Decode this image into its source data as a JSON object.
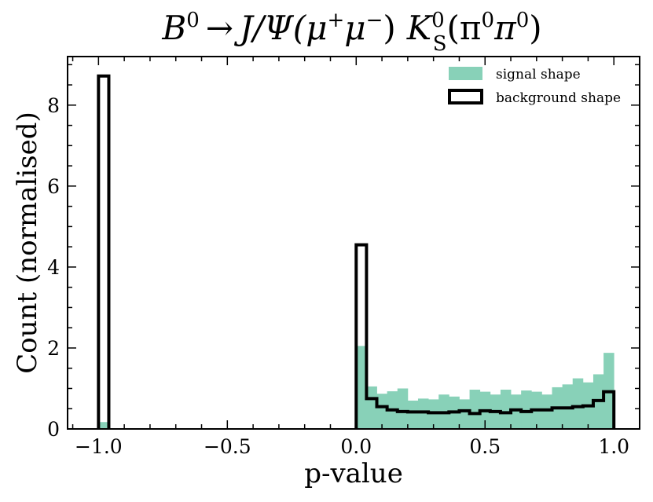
{
  "chart_data": {
    "type": "histogram",
    "title": {
      "text": "B0 → J/Ψ(μ+μ−) K0S(π0π0)",
      "parts": {
        "b": "B",
        "b_sup": "0",
        "arrow": "→",
        "jpsi": "J/Ψ(μ",
        "mu_plus_sup": "+",
        "mu": "μ",
        "mu_minus_sup": "−",
        "close": ")",
        "k": "K",
        "k_sup": "0",
        "k_sub": "S",
        "pi_open": "(π",
        "pi_sup1": "0",
        "pi": "π",
        "pi_sup2": "0",
        "pi_close": ")"
      }
    },
    "xlabel": "p-value",
    "ylabel": "Count (normalised)",
    "xlim": [
      -1.12,
      1.1
    ],
    "ylim": [
      0,
      9.2
    ],
    "xticks": [
      -1.0,
      -0.5,
      0.0,
      0.5,
      1.0
    ],
    "xtick_labels": [
      "−1.0",
      "−0.5",
      "0.0",
      "0.5",
      "1.0"
    ],
    "yticks": [
      0,
      2,
      4,
      6,
      8
    ],
    "ytick_labels": [
      "0",
      "2",
      "4",
      "6",
      "8"
    ],
    "legend": {
      "position": "top-right",
      "entries": [
        {
          "label": "signal shape",
          "style": "filled",
          "color": "#88d1b8"
        },
        {
          "label": "background shape",
          "style": "step",
          "color": "#000000"
        }
      ]
    },
    "bin_width": 0.04,
    "series": [
      {
        "name": "signal shape",
        "color": "#88d1b8",
        "bins": [
          {
            "x0": -1.0,
            "x1": -0.96,
            "y": 0.17
          },
          {
            "x0": 0.0,
            "x1": 0.04,
            "y": 2.05
          },
          {
            "x0": 0.04,
            "x1": 0.08,
            "y": 1.05
          },
          {
            "x0": 0.08,
            "x1": 0.12,
            "y": 0.87
          },
          {
            "x0": 0.12,
            "x1": 0.16,
            "y": 0.93
          },
          {
            "x0": 0.16,
            "x1": 0.2,
            "y": 1.0
          },
          {
            "x0": 0.2,
            "x1": 0.24,
            "y": 0.7
          },
          {
            "x0": 0.24,
            "x1": 0.28,
            "y": 0.75
          },
          {
            "x0": 0.28,
            "x1": 0.32,
            "y": 0.73
          },
          {
            "x0": 0.32,
            "x1": 0.36,
            "y": 0.85
          },
          {
            "x0": 0.36,
            "x1": 0.4,
            "y": 0.8
          },
          {
            "x0": 0.4,
            "x1": 0.44,
            "y": 0.73
          },
          {
            "x0": 0.44,
            "x1": 0.48,
            "y": 0.97
          },
          {
            "x0": 0.48,
            "x1": 0.52,
            "y": 0.92
          },
          {
            "x0": 0.52,
            "x1": 0.56,
            "y": 0.85
          },
          {
            "x0": 0.56,
            "x1": 0.6,
            "y": 0.97
          },
          {
            "x0": 0.6,
            "x1": 0.64,
            "y": 0.85
          },
          {
            "x0": 0.64,
            "x1": 0.68,
            "y": 0.95
          },
          {
            "x0": 0.68,
            "x1": 0.72,
            "y": 0.92
          },
          {
            "x0": 0.72,
            "x1": 0.76,
            "y": 0.85
          },
          {
            "x0": 0.76,
            "x1": 0.8,
            "y": 1.03
          },
          {
            "x0": 0.8,
            "x1": 0.84,
            "y": 1.1
          },
          {
            "x0": 0.84,
            "x1": 0.88,
            "y": 1.25
          },
          {
            "x0": 0.88,
            "x1": 0.92,
            "y": 1.15
          },
          {
            "x0": 0.92,
            "x1": 0.96,
            "y": 1.35
          },
          {
            "x0": 0.96,
            "x1": 1.0,
            "y": 1.88
          }
        ]
      },
      {
        "name": "background shape",
        "color": "#000000",
        "bins": [
          {
            "x0": -1.0,
            "x1": -0.96,
            "y": 8.72
          },
          {
            "x0": 0.0,
            "x1": 0.04,
            "y": 4.55
          },
          {
            "x0": 0.04,
            "x1": 0.08,
            "y": 0.75
          },
          {
            "x0": 0.08,
            "x1": 0.12,
            "y": 0.55
          },
          {
            "x0": 0.12,
            "x1": 0.16,
            "y": 0.47
          },
          {
            "x0": 0.16,
            "x1": 0.2,
            "y": 0.43
          },
          {
            "x0": 0.2,
            "x1": 0.24,
            "y": 0.42
          },
          {
            "x0": 0.24,
            "x1": 0.28,
            "y": 0.42
          },
          {
            "x0": 0.28,
            "x1": 0.32,
            "y": 0.4
          },
          {
            "x0": 0.32,
            "x1": 0.36,
            "y": 0.4
          },
          {
            "x0": 0.36,
            "x1": 0.4,
            "y": 0.42
          },
          {
            "x0": 0.4,
            "x1": 0.44,
            "y": 0.45
          },
          {
            "x0": 0.44,
            "x1": 0.48,
            "y": 0.38
          },
          {
            "x0": 0.48,
            "x1": 0.52,
            "y": 0.45
          },
          {
            "x0": 0.52,
            "x1": 0.56,
            "y": 0.43
          },
          {
            "x0": 0.56,
            "x1": 0.6,
            "y": 0.4
          },
          {
            "x0": 0.6,
            "x1": 0.64,
            "y": 0.47
          },
          {
            "x0": 0.64,
            "x1": 0.68,
            "y": 0.43
          },
          {
            "x0": 0.68,
            "x1": 0.72,
            "y": 0.47
          },
          {
            "x0": 0.72,
            "x1": 0.76,
            "y": 0.47
          },
          {
            "x0": 0.76,
            "x1": 0.8,
            "y": 0.52
          },
          {
            "x0": 0.8,
            "x1": 0.84,
            "y": 0.52
          },
          {
            "x0": 0.84,
            "x1": 0.88,
            "y": 0.55
          },
          {
            "x0": 0.88,
            "x1": 0.92,
            "y": 0.57
          },
          {
            "x0": 0.92,
            "x1": 0.96,
            "y": 0.7
          },
          {
            "x0": 0.96,
            "x1": 1.0,
            "y": 0.92
          }
        ]
      }
    ]
  }
}
